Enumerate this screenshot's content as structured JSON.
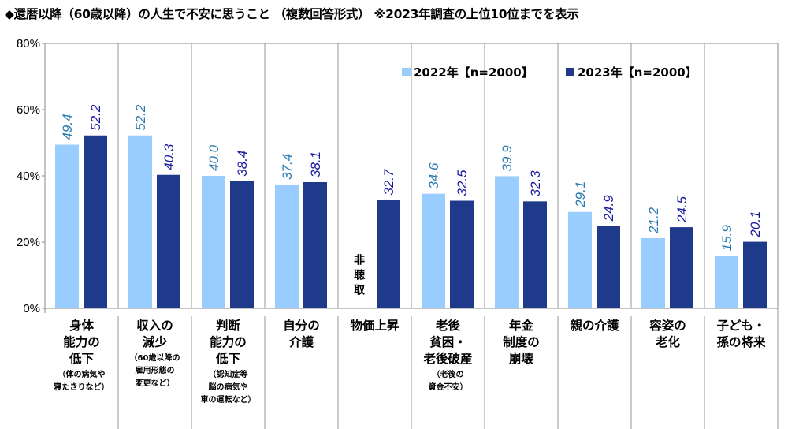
{
  "chart_data": {
    "type": "bar",
    "title": "◆還暦以降（60歳以降）の人生で不安に思うこと （複数回答形式） ※2023年調査の上位10位までを表示",
    "categories": [
      {
        "main": [
          "身体",
          "能力の",
          "低下"
        ],
        "note": [
          "（体の病気や",
          "寝たきりなど）"
        ]
      },
      {
        "main": [
          "収入の",
          "減少"
        ],
        "note": [
          "（60歳以降の",
          "雇用形態の",
          "変更など）"
        ]
      },
      {
        "main": [
          "判断",
          "能力の",
          "低下"
        ],
        "note": [
          "（認知症等",
          "脳の病気や",
          "車の運転など）"
        ]
      },
      {
        "main": [
          "自分の",
          "介護"
        ],
        "note": []
      },
      {
        "main": [
          "物価上昇"
        ],
        "note": []
      },
      {
        "main": [
          "老後",
          "貧困・",
          "老後破産"
        ],
        "note": [
          "（老後の",
          "資金不安）"
        ]
      },
      {
        "main": [
          "年金",
          "制度の",
          "崩壊"
        ],
        "note": []
      },
      {
        "main": [
          "親の介護"
        ],
        "note": []
      },
      {
        "main": [
          "容姿の",
          "老化"
        ],
        "note": []
      },
      {
        "main": [
          "子ども・",
          "孫の将来"
        ],
        "note": []
      }
    ],
    "series": [
      {
        "name": "2022年【n=2000】",
        "color": "#99ccff",
        "label_color": "#2a7ab0",
        "values": [
          49.4,
          52.2,
          40.0,
          37.4,
          null,
          34.6,
          39.9,
          29.1,
          21.2,
          15.9
        ]
      },
      {
        "name": "2023年【n=2000】",
        "color": "#1f3a8a",
        "label_color": "#1a1aa0",
        "values": [
          52.2,
          40.3,
          38.4,
          38.1,
          32.7,
          32.5,
          32.3,
          24.9,
          24.5,
          20.1
        ]
      }
    ],
    "missing_label": "非聴取",
    "yticks": [
      "0%",
      "20%",
      "40%",
      "60%",
      "80%"
    ],
    "ylim": [
      0,
      80
    ],
    "grid": false,
    "legend": "top-right",
    "xlabel": "",
    "ylabel": ""
  }
}
